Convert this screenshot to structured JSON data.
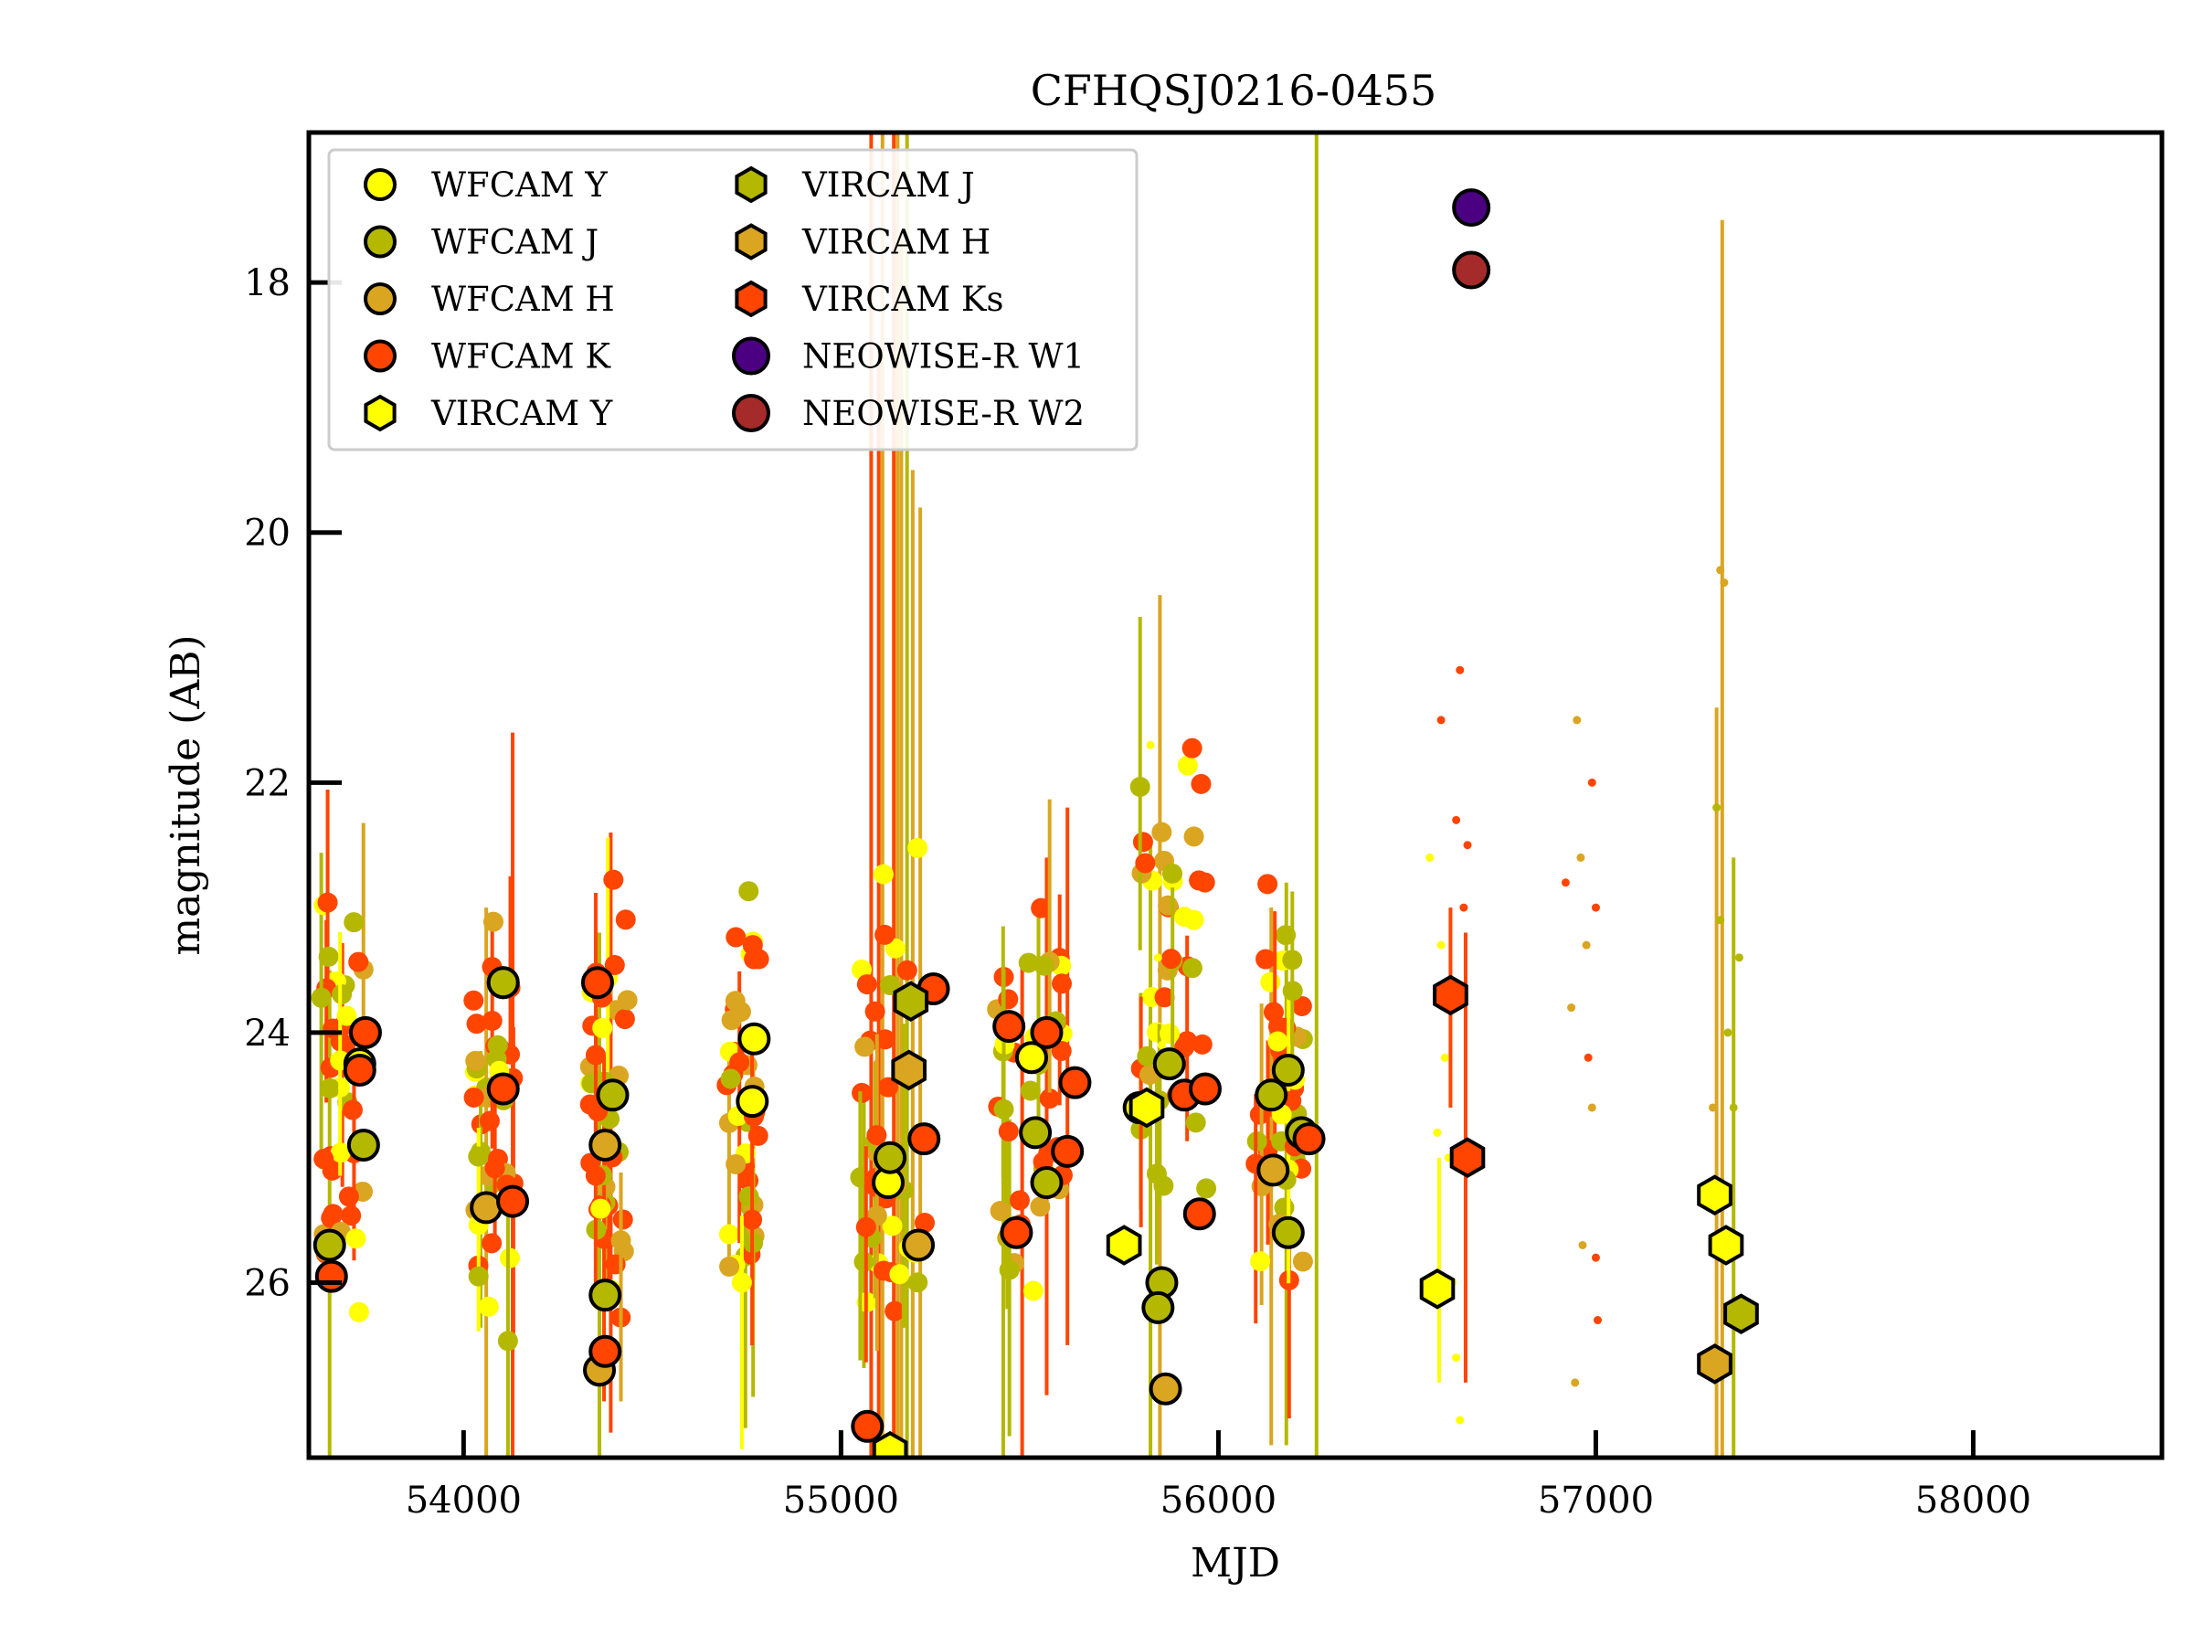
{
  "chart_data": {
    "type": "scatter",
    "title": "CFHQSJ0216-0455",
    "xlabel": "MJD",
    "ylabel": "magnitude (AB)",
    "xlim": [
      53590,
      58500
    ],
    "ylim": [
      27.4,
      16.8
    ],
    "y_inverted": true,
    "x_ticks": [
      54000,
      55000,
      56000,
      57000,
      58000
    ],
    "y_ticks": [
      18,
      20,
      22,
      24,
      26
    ],
    "legend_position": "upper-left",
    "legend_columns": 2,
    "series": [
      {
        "name": "WFCAM Y",
        "marker": "circle",
        "color": "#ffff00",
        "edge": "#000000",
        "points": [
          [
            53725,
            24.25
          ],
          [
            54105,
            23.6
          ],
          [
            54770,
            24.05
          ],
          [
            54765,
            24.55
          ],
          [
            55125,
            25.2
          ],
          [
            55505,
            24.2
          ],
          [
            55790,
            24.6
          ]
        ],
        "faint": [
          [
            55820,
            21.7
          ],
          [
            55840,
            23.4
          ],
          [
            55850,
            24.1
          ],
          [
            56560,
            22.6
          ],
          [
            56590,
            23.3
          ],
          [
            56600,
            24.2
          ],
          [
            56610,
            25.0
          ],
          [
            56620,
            26.0
          ],
          [
            56630,
            26.6
          ],
          [
            56640,
            27.1
          ],
          [
            56580,
            24.8
          ]
        ]
      },
      {
        "name": "WFCAM J",
        "marker": "circle",
        "color": "#b5b800",
        "edge": "#000000",
        "points": [
          [
            53645,
            25.7
          ],
          [
            53735,
            24.9
          ],
          [
            54105,
            23.6
          ],
          [
            54395,
            24.5
          ],
          [
            54375,
            26.1
          ],
          [
            55130,
            25.0
          ],
          [
            55515,
            24.8
          ],
          [
            55545,
            25.2
          ],
          [
            55870,
            24.25
          ],
          [
            56140,
            24.5
          ],
          [
            56185,
            24.3
          ],
          [
            56185,
            25.6
          ],
          [
            56220,
            24.8
          ],
          [
            55850,
            26.0
          ],
          [
            55840,
            26.2
          ]
        ],
        "faint": [
          [
            57330,
            23.1
          ],
          [
            57350,
            24.0
          ],
          [
            57365,
            24.6
          ],
          [
            57380,
            23.4
          ],
          [
            57320,
            22.2
          ]
        ]
      },
      {
        "name": "WFCAM H",
        "marker": "circle",
        "color": "#daa520",
        "edge": "#000000",
        "points": [
          [
            54060,
            25.4
          ],
          [
            54360,
            26.7
          ],
          [
            54375,
            24.9
          ],
          [
            55205,
            25.7
          ],
          [
            55860,
            26.85
          ],
          [
            56145,
            25.1
          ]
        ],
        "faint": [
          [
            56950,
            21.5
          ],
          [
            56960,
            22.6
          ],
          [
            56975,
            23.3
          ],
          [
            56935,
            23.8
          ],
          [
            56990,
            24.6
          ],
          [
            56965,
            25.7
          ],
          [
            56945,
            26.8
          ],
          [
            57330,
            20.3
          ],
          [
            57340,
            20.4
          ],
          [
            57310,
            24.6
          ]
        ]
      },
      {
        "name": "WFCAM K",
        "marker": "circle",
        "color": "#ff4500",
        "edge": "#000000",
        "points": [
          [
            53650,
            25.95
          ],
          [
            53740,
            24.0
          ],
          [
            53725,
            24.3
          ],
          [
            54105,
            24.45
          ],
          [
            54130,
            25.35
          ],
          [
            54355,
            23.6
          ],
          [
            54375,
            26.55
          ],
          [
            55070,
            27.15
          ],
          [
            55220,
            24.85
          ],
          [
            55245,
            23.65
          ],
          [
            55445,
            23.95
          ],
          [
            55465,
            25.6
          ],
          [
            55545,
            24.0
          ],
          [
            55600,
            24.95
          ],
          [
            55620,
            24.4
          ],
          [
            55910,
            24.5
          ],
          [
            55950,
            25.45
          ],
          [
            55965,
            24.45
          ],
          [
            56240,
            24.85
          ]
        ],
        "faint": [
          [
            56640,
            21.1
          ],
          [
            56630,
            22.3
          ],
          [
            56660,
            22.5
          ],
          [
            56650,
            23.0
          ],
          [
            56590,
            21.5
          ],
          [
            56920,
            22.8
          ],
          [
            56990,
            22.0
          ],
          [
            57000,
            23.0
          ],
          [
            56980,
            24.2
          ],
          [
            57000,
            25.8
          ],
          [
            57005,
            26.3
          ]
        ]
      },
      {
        "name": "VIRCAM Y",
        "marker": "hexagon",
        "color": "#ffff00",
        "edge": "#000000",
        "points": [
          [
            55130,
            27.35
          ],
          [
            55750,
            25.7
          ],
          [
            55810,
            24.6
          ],
          [
            56580,
            26.05
          ],
          [
            57315,
            25.3
          ],
          [
            57345,
            25.7
          ]
        ]
      },
      {
        "name": "VIRCAM J",
        "marker": "hexagon",
        "color": "#b5b800",
        "edge": "#000000",
        "points": [
          [
            55185,
            23.75
          ],
          [
            57385,
            26.25
          ]
        ]
      },
      {
        "name": "VIRCAM H",
        "marker": "hexagon",
        "color": "#daa520",
        "edge": "#000000",
        "points": [
          [
            55180,
            24.3
          ],
          [
            57315,
            26.65
          ]
        ]
      },
      {
        "name": "VIRCAM Ks",
        "marker": "hexagon",
        "color": "#ff4500",
        "edge": "#000000",
        "points": [
          [
            56615,
            23.7
          ],
          [
            56660,
            25.0
          ]
        ]
      },
      {
        "name": "NEOWISE-R W1",
        "marker": "circle-large",
        "color": "#4b0082",
        "edge": "#000000",
        "points": [
          [
            56670,
            17.4
          ]
        ]
      },
      {
        "name": "NEOWISE-R W2",
        "marker": "circle-large",
        "color": "#a52a2a",
        "edge": "#000000",
        "points": [
          [
            56670,
            17.9
          ]
        ]
      }
    ],
    "clusters": [
      {
        "x": 53680,
        "spread": 60,
        "range": [
          22.2,
          27.2
        ]
      },
      {
        "x": 54080,
        "spread": 55,
        "range": [
          22.7,
          27.3
        ]
      },
      {
        "x": 54380,
        "spread": 55,
        "range": [
          22.7,
          27.2
        ]
      },
      {
        "x": 54740,
        "spread": 45,
        "range": [
          22.6,
          27.0
        ]
      },
      {
        "x": 55140,
        "spread": 90,
        "range": [
          22.3,
          27.3
        ]
      },
      {
        "x": 55500,
        "spread": 90,
        "range": [
          22.4,
          27.3
        ]
      },
      {
        "x": 55880,
        "spread": 90,
        "range": [
          21.3,
          27.3
        ]
      },
      {
        "x": 56160,
        "spread": 65,
        "range": [
          22.6,
          27.2
        ]
      }
    ],
    "errorbars": [
      {
        "x": 53645,
        "low": 23.5,
        "high": 27.4,
        "color": "#b5b800"
      },
      {
        "x": 54130,
        "low": 21.6,
        "high": 27.4,
        "color": "#ff4500"
      },
      {
        "x": 54060,
        "low": 23.0,
        "high": 27.4,
        "color": "#daa520"
      },
      {
        "x": 54360,
        "low": 23.2,
        "high": 27.4,
        "color": "#b5b800"
      },
      {
        "x": 54390,
        "low": 22.4,
        "high": 27.2,
        "color": "#ff4500"
      },
      {
        "x": 55080,
        "low": 16.8,
        "high": 27.4,
        "color": "#ff4500"
      },
      {
        "x": 55110,
        "low": 16.8,
        "high": 27.4,
        "color": "#daa520"
      },
      {
        "x": 55140,
        "low": 16.8,
        "high": 27.4,
        "color": "#ff4500"
      },
      {
        "x": 55150,
        "low": 16.8,
        "high": 27.4,
        "color": "#daa520"
      },
      {
        "x": 55160,
        "low": 17.6,
        "high": 27.4,
        "color": "#daa520"
      },
      {
        "x": 55175,
        "low": 16.8,
        "high": 27.4,
        "color": "#b5b800"
      },
      {
        "x": 55190,
        "low": 19.5,
        "high": 27.4,
        "color": "#daa520"
      },
      {
        "x": 55210,
        "low": 19.8,
        "high": 27.4,
        "color": "#daa520"
      },
      {
        "x": 55100,
        "low": 18.5,
        "high": 27.4,
        "color": "#ff4500"
      },
      {
        "x": 55430,
        "low": 23.6,
        "high": 27.4,
        "color": "#b5b800"
      },
      {
        "x": 55480,
        "low": 23.4,
        "high": 27.4,
        "color": "#ff4500"
      },
      {
        "x": 55545,
        "low": 22.6,
        "high": 26.9,
        "color": "#ff4500"
      },
      {
        "x": 55600,
        "low": 22.2,
        "high": 26.5,
        "color": "#ff4500"
      },
      {
        "x": 55820,
        "low": 22.5,
        "high": 27.4,
        "color": "#b5b800"
      },
      {
        "x": 55845,
        "low": 20.5,
        "high": 27.4,
        "color": "#daa520"
      },
      {
        "x": 56140,
        "low": 23.0,
        "high": 27.3,
        "color": "#daa520"
      },
      {
        "x": 56180,
        "low": 22.8,
        "high": 27.3,
        "color": "#b5b800"
      },
      {
        "x": 56260,
        "low": 16.8,
        "high": 27.4,
        "color": "#b5b800"
      },
      {
        "x": 56615,
        "low": 23.0,
        "high": 24.6,
        "color": "#ff4500"
      },
      {
        "x": 56655,
        "low": 23.2,
        "high": 26.8,
        "color": "#ff4500"
      },
      {
        "x": 56585,
        "low": 25.0,
        "high": 26.8,
        "color": "#ffff00"
      },
      {
        "x": 57320,
        "low": 21.4,
        "high": 27.4,
        "color": "#daa520"
      },
      {
        "x": 57335,
        "low": 17.5,
        "high": 27.4,
        "color": "#daa520"
      },
      {
        "x": 57365,
        "low": 22.6,
        "high": 27.4,
        "color": "#b5b800"
      }
    ]
  }
}
